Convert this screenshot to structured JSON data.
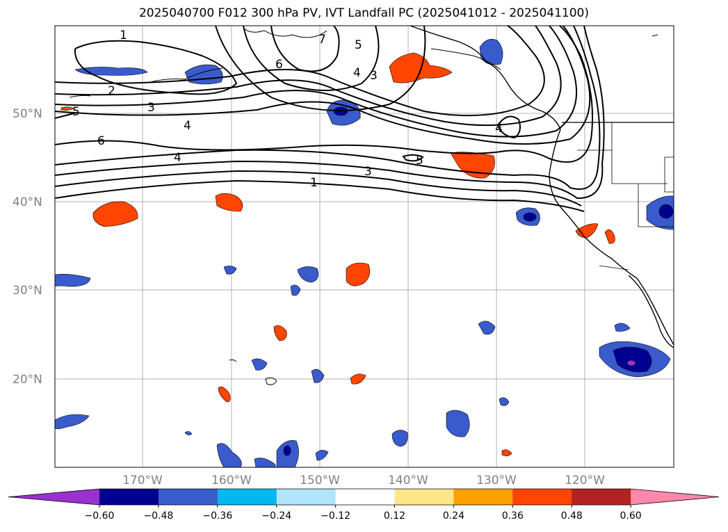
{
  "title": "2025040700 F012 300 hPa PV, IVT Landfall PC (2025041012 - 2025041100)",
  "latitude_labels": [
    "50°N",
    "40°N",
    "30°N",
    "20°N"
  ],
  "longitude_labels": [
    "170°W",
    "160°W",
    "150°W",
    "140°W",
    "130°W",
    "120°W"
  ],
  "colorbar": {
    "colors": [
      "#9b30d0",
      "#000090",
      "#3a5bcc",
      "#00b8f0",
      "#b0e4fa",
      "#ffffff",
      "#fde68a",
      "#ff9f00",
      "#ff4500",
      "#b22222",
      "#ff88aa"
    ],
    "ticks": [
      "−0.60",
      "−0.48",
      "−0.36",
      "−0.24",
      "−0.12",
      "0.12",
      "0.24",
      "0.36",
      "0.48",
      "0.60"
    ]
  },
  "pv_contour_labels": [
    "1",
    "2",
    "3",
    "4",
    "5",
    "6",
    "4",
    "3",
    "1",
    "3",
    "4",
    "5",
    "6",
    "7",
    "5",
    "4"
  ]
}
